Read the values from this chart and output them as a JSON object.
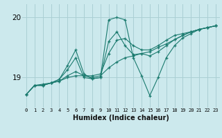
{
  "xlabel": "Humidex (Indice chaleur)",
  "bg_color": "#cce9ed",
  "line_color": "#1a7a6e",
  "grid_color": "#aacfd4",
  "x": [
    0,
    1,
    2,
    3,
    4,
    5,
    6,
    7,
    8,
    9,
    10,
    11,
    12,
    13,
    14,
    15,
    16,
    17,
    18,
    19,
    20,
    21,
    22,
    23
  ],
  "ylim": [
    18.5,
    20.22
  ],
  "yticks": [
    19,
    20
  ],
  "series": [
    [
      18.72,
      18.87,
      18.87,
      18.91,
      18.94,
      19.03,
      19.1,
      19.03,
      19.03,
      19.06,
      19.4,
      19.62,
      19.65,
      19.53,
      19.46,
      19.46,
      19.53,
      19.62,
      19.7,
      19.73,
      19.76,
      19.8,
      19.83,
      19.86
    ],
    [
      18.72,
      18.87,
      18.89,
      18.91,
      18.97,
      19.2,
      19.46,
      19.06,
      18.98,
      19.0,
      19.96,
      20.0,
      19.96,
      19.33,
      19.03,
      18.7,
      19.0,
      19.33,
      19.53,
      19.66,
      19.73,
      19.8,
      19.83,
      19.86
    ],
    [
      18.72,
      18.87,
      18.87,
      18.91,
      18.94,
      19.0,
      19.03,
      19.03,
      19.0,
      19.03,
      19.16,
      19.26,
      19.33,
      19.36,
      19.4,
      19.43,
      19.5,
      19.56,
      19.63,
      19.7,
      19.76,
      19.8,
      19.83,
      19.86
    ],
    [
      18.72,
      18.87,
      18.87,
      18.91,
      18.97,
      19.13,
      19.33,
      19.0,
      18.98,
      19.0,
      19.6,
      19.76,
      19.53,
      19.38,
      19.4,
      19.36,
      19.43,
      19.53,
      19.63,
      19.7,
      19.76,
      19.8,
      19.83,
      19.86
    ]
  ]
}
